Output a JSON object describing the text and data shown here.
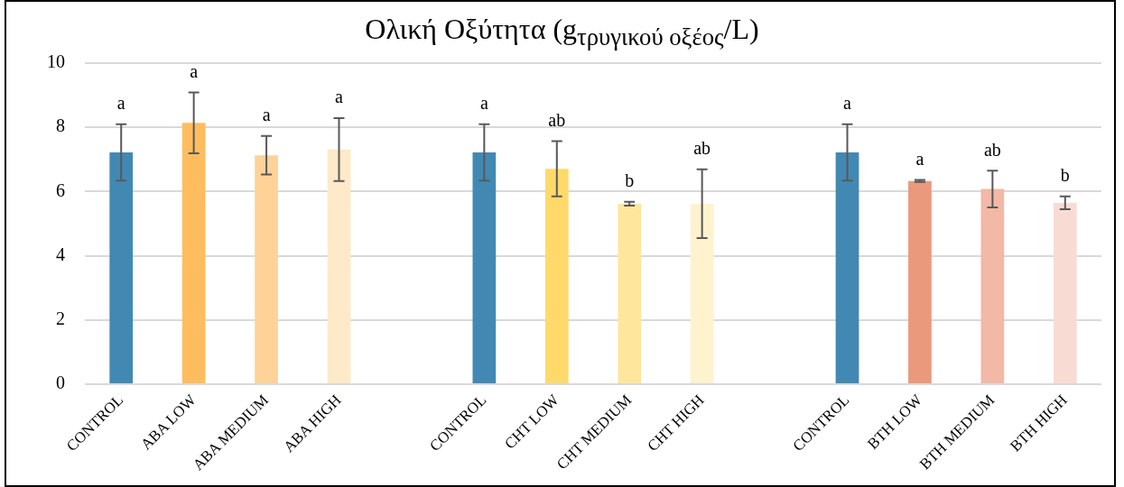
{
  "chart_data": {
    "type": "bar",
    "title": "Ολική Οξύτητα (g$_{τρυγικού οξέος}$/L)",
    "categories": [
      "CONTROL",
      "ABA LOW",
      "ABA MEDIUM",
      "ABA HIGH",
      null,
      "CONTROL",
      "CHT LOW",
      "CHT MEDIUM",
      "CHT HIGH",
      null,
      "CONTROL",
      "BTH LOW",
      "BTH MEDIUM",
      "BTH HIGH"
    ],
    "values": [
      7.22,
      8.14,
      7.13,
      7.31,
      null,
      7.22,
      6.71,
      5.62,
      5.62,
      null,
      7.22,
      6.33,
      6.08,
      5.65
    ],
    "errors": [
      0.88,
      0.95,
      0.6,
      0.98,
      null,
      0.88,
      0.86,
      0.06,
      1.07,
      null,
      0.88,
      0.03,
      0.57,
      0.2
    ],
    "value_labels": [
      "a",
      "a",
      "a",
      "a",
      null,
      "a",
      "ab",
      "b",
      "ab",
      null,
      "a",
      "a",
      "ab",
      "b"
    ],
    "colors": [
      "#4189b3",
      "#ffbd5f",
      "#ffd397",
      "#fee9c9",
      null,
      "#4189b3",
      "#ffda6b",
      "#fee79d",
      "#fff2cf",
      null,
      "#4189b3",
      "#eb997d",
      "#f2b9a6",
      "#f8dcd3"
    ],
    "ylim": [
      0,
      10
    ],
    "yticks": [
      0,
      2,
      4,
      6,
      8,
      10
    ],
    "grid": "y",
    "legend": false
  }
}
